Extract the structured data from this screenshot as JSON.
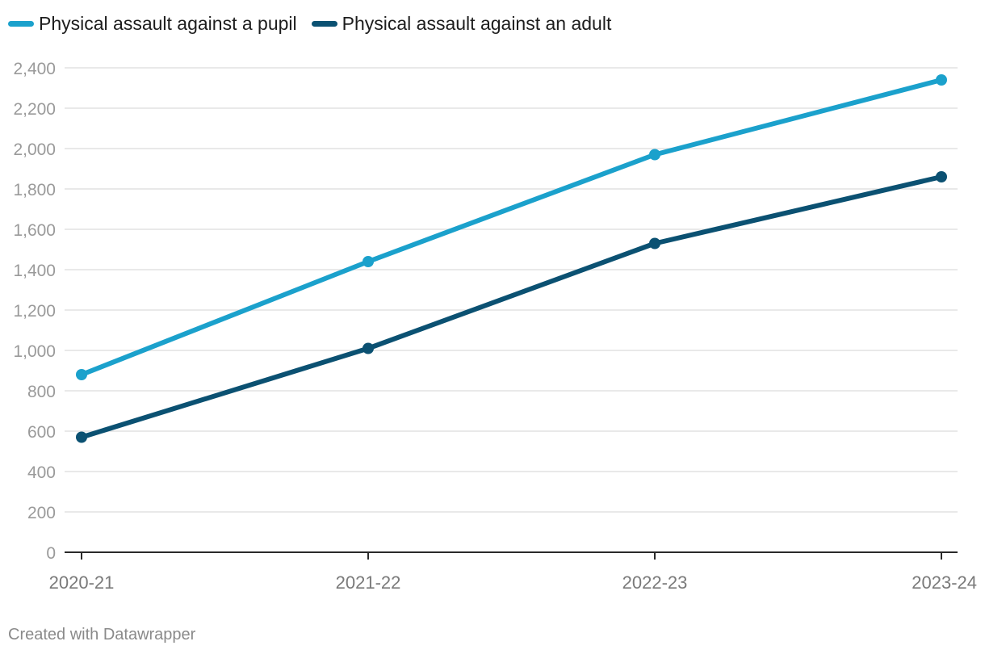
{
  "chart_data": {
    "type": "line",
    "categories": [
      "2020-21",
      "2021-22",
      "2022-23",
      "2023-24"
    ],
    "series": [
      {
        "name": "Physical assault against a pupil",
        "color": "#1ba1cc",
        "values": [
          880,
          1440,
          1970,
          2340
        ]
      },
      {
        "name": "Physical assault against an adult",
        "color": "#0b5172",
        "values": [
          570,
          1010,
          1530,
          1860
        ]
      }
    ],
    "ylim": [
      0,
      2400
    ],
    "yticks": [
      "0",
      "200",
      "400",
      "600",
      "800",
      "1,000",
      "1,200",
      "1,400",
      "1,600",
      "1,800",
      "2,000",
      "2,200",
      "2,400"
    ],
    "grid": true,
    "legend": "top-left"
  },
  "credit": "Created with Datawrapper"
}
